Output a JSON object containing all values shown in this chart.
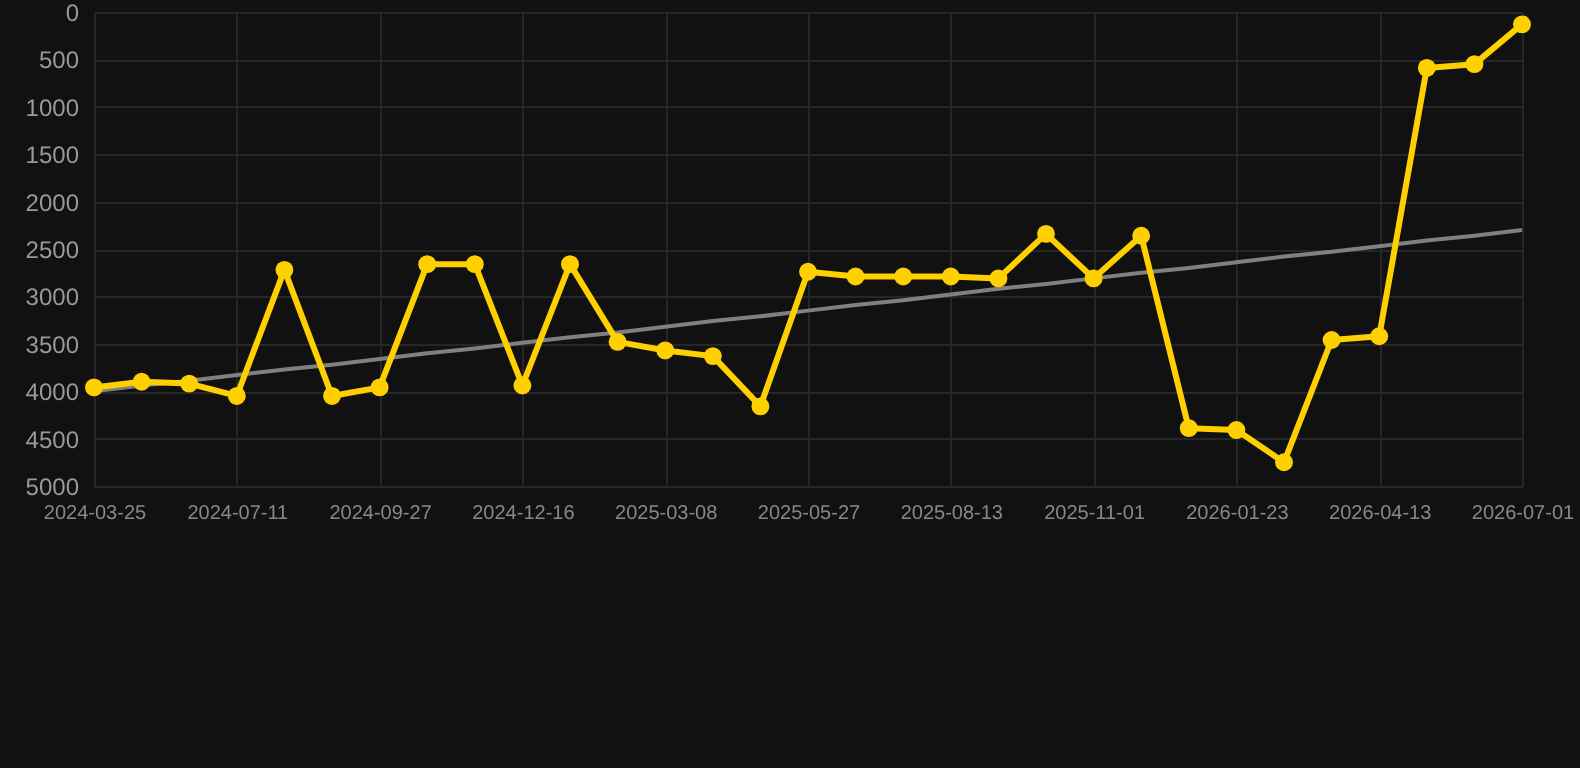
{
  "chart_data": {
    "type": "line",
    "categories": [
      "2024-03-25",
      null,
      null,
      "2024-07-11",
      null,
      null,
      "2024-09-27",
      null,
      null,
      "2024-12-16",
      null,
      null,
      "2025-03-08",
      null,
      null,
      "2025-05-27",
      null,
      null,
      "2025-08-13",
      null,
      null,
      "2025-11-01",
      null,
      null,
      "2026-01-23",
      null,
      null,
      "2026-04-13",
      null,
      null,
      "2026-07-01"
    ],
    "series": [
      {
        "color": "#ffd000",
        "values": [
          3960,
          3900,
          3920,
          4050,
          2720,
          4050,
          3960,
          2660,
          2660,
          3940,
          2660,
          3480,
          3570,
          3630,
          4160,
          2740,
          2790,
          2790,
          2790,
          2810,
          2340,
          2810,
          2360,
          4390,
          4410,
          4750,
          3460,
          3420,
          590,
          550,
          130
        ]
      },
      {
        "type": "line",
        "color": "#808080",
        "marker": "none",
        "values": [
          4000,
          3940,
          3890,
          3830,
          3770,
          3720,
          3660,
          3600,
          3550,
          3490,
          3430,
          3380,
          3320,
          3260,
          3210,
          3150,
          3090,
          3040,
          2980,
          2920,
          2870,
          2810,
          2750,
          2700,
          2640,
          2580,
          2530,
          2470,
          2410,
          2360,
          2300
        ]
      }
    ],
    "ylim": [
      5000,
      0
    ],
    "yticks": [
      0,
      500,
      1000,
      1500,
      2000,
      2500,
      3000,
      3500,
      4000,
      4500,
      5000
    ],
    "grid": true,
    "marker": "circle",
    "line_style": "solid"
  }
}
